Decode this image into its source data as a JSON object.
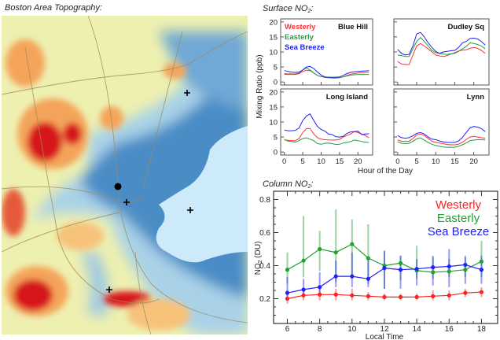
{
  "map": {
    "title": "Boston Area Topography:",
    "colors": {
      "water": "#cdeafa",
      "low": "#3f86c4",
      "mid": "#a9d2e8",
      "plain": "#eef0b0",
      "high": "#f4a45a",
      "peak": "#d7191c",
      "roads": "#a08a5a"
    },
    "markers": [
      {
        "type": "dot",
        "icon": "filled-circle-icon"
      },
      {
        "type": "plus",
        "icon": "plus-marker-icon"
      },
      {
        "type": "plus",
        "icon": "plus-marker-icon"
      },
      {
        "type": "plus",
        "icon": "plus-marker-icon"
      },
      {
        "type": "plus",
        "icon": "plus-marker-icon"
      }
    ]
  },
  "chart_data": [
    {
      "type": "line",
      "title": "Surface NO2:",
      "title_main": "Surface NO",
      "title_sub": "2",
      "title_suffix": ":",
      "xlabel": "Hour of the Day",
      "ylabel": "Mixing Ratio (ppb)",
      "xlim": [
        -1,
        24
      ],
      "ylim": [
        -1,
        21
      ],
      "xticks": [
        0,
        5,
        10,
        15,
        20
      ],
      "yticks": [
        0,
        5,
        10,
        15,
        20
      ],
      "legend": {
        "placement": "top-left of first panel",
        "entries": [
          "Westerly",
          "Easterly",
          "Sea Breeze"
        ]
      },
      "colors": {
        "Westerly": "#ff3030",
        "Easterly": "#22a040",
        "Sea Breeze": "#2020ff"
      },
      "x": [
        0,
        1,
        2,
        3,
        4,
        5,
        6,
        7,
        8,
        9,
        10,
        11,
        12,
        13,
        14,
        15,
        16,
        17,
        18,
        19,
        20,
        21,
        22,
        23
      ],
      "panels": [
        {
          "name": "Blue Hill",
          "series": [
            {
              "name": "Westerly",
              "values": [
                2.6,
                2.5,
                2.5,
                2.5,
                2.8,
                3.5,
                3.9,
                3.8,
                3.0,
                2.2,
                1.8,
                1.5,
                1.4,
                1.3,
                1.3,
                1.4,
                1.7,
                2.2,
                2.6,
                2.8,
                3.0,
                3.1,
                3.2,
                3.2
              ]
            },
            {
              "name": "Easterly",
              "values": [
                2.8,
                2.7,
                2.7,
                2.7,
                3.0,
                4.0,
                4.7,
                4.0,
                3.0,
                2.2,
                1.8,
                1.6,
                1.5,
                1.5,
                1.5,
                1.5,
                1.7,
                2.0,
                2.3,
                2.4,
                2.5,
                2.5,
                2.5,
                2.5
              ]
            },
            {
              "name": "Sea Breeze",
              "values": [
                3.8,
                3.5,
                3.3,
                3.2,
                3.3,
                4.0,
                5.0,
                5.2,
                4.5,
                3.3,
                2.3,
                1.7,
                1.6,
                1.6,
                1.6,
                1.7,
                2.2,
                2.8,
                3.2,
                3.4,
                3.5,
                3.6,
                3.7,
                3.8
              ]
            }
          ]
        },
        {
          "name": "Dudley Sq",
          "series": [
            {
              "name": "Westerly",
              "values": [
                6.8,
                6.0,
                5.8,
                5.8,
                9.0,
                12.0,
                12.8,
                12.0,
                11.0,
                10.0,
                9.0,
                8.7,
                8.5,
                8.8,
                9.3,
                9.8,
                10.3,
                10.6,
                10.7,
                11.2,
                11.5,
                11.2,
                10.5,
                9.5
              ]
            },
            {
              "name": "Easterly",
              "values": [
                9.0,
                8.8,
                8.5,
                8.5,
                11.0,
                13.5,
                14.8,
                13.5,
                12.0,
                10.5,
                9.8,
                9.5,
                9.3,
                9.2,
                9.4,
                9.5,
                10.2,
                11.0,
                11.8,
                13.0,
                12.8,
                12.5,
                12.0,
                11.0
              ]
            },
            {
              "name": "Sea Breeze",
              "values": [
                10.8,
                9.5,
                9.0,
                9.2,
                12.0,
                16.0,
                16.5,
                15.0,
                13.0,
                11.5,
                10.2,
                9.5,
                10.0,
                10.2,
                10.4,
                10.5,
                11.5,
                13.0,
                13.5,
                14.5,
                14.6,
                14.3,
                13.5,
                12.3
              ]
            }
          ]
        },
        {
          "name": "Long Island",
          "series": [
            {
              "name": "Westerly",
              "values": [
                4.0,
                3.9,
                3.8,
                3.8,
                4.5,
                6.5,
                7.8,
                7.8,
                6.0,
                4.8,
                4.3,
                4.1,
                4.0,
                4.0,
                4.0,
                4.2,
                5.0,
                5.5,
                6.0,
                6.8,
                6.5,
                6.0,
                5.5,
                4.8
              ]
            },
            {
              "name": "Easterly",
              "values": [
                4.2,
                3.6,
                3.5,
                3.3,
                3.8,
                4.5,
                4.7,
                4.3,
                3.8,
                2.8,
                2.6,
                2.9,
                3.0,
                2.8,
                2.5,
                2.6,
                3.0,
                3.2,
                3.5,
                4.0,
                3.8,
                3.5,
                3.3,
                3.2
              ]
            },
            {
              "name": "Sea Breeze",
              "values": [
                7.3,
                7.1,
                7.1,
                7.2,
                8.0,
                10.5,
                12.0,
                12.7,
                10.5,
                8.5,
                7.5,
                7.0,
                6.0,
                5.8,
                5.1,
                5.0,
                5.2,
                6.2,
                6.7,
                6.8,
                7.0,
                5.8,
                6.0,
                6.1
              ]
            }
          ]
        },
        {
          "name": "Lynn",
          "series": [
            {
              "name": "Westerly",
              "values": [
                4.0,
                3.6,
                3.5,
                3.6,
                4.5,
                5.7,
                6.0,
                5.5,
                4.5,
                3.6,
                3.2,
                3.0,
                2.8,
                2.5,
                2.4,
                2.4,
                2.6,
                3.2,
                4.2,
                5.0,
                5.2,
                5.0,
                4.8,
                4.5
              ]
            },
            {
              "name": "Easterly",
              "values": [
                3.4,
                2.9,
                2.8,
                2.9,
                3.6,
                4.4,
                4.7,
                4.0,
                3.2,
                2.6,
                2.2,
                1.9,
                1.7,
                1.6,
                1.6,
                1.6,
                1.9,
                2.4,
                3.0,
                3.8,
                4.0,
                4.1,
                4.1,
                4.0
              ]
            },
            {
              "name": "Sea Breeze",
              "values": [
                5.5,
                4.8,
                4.6,
                4.8,
                5.4,
                6.2,
                6.5,
                6.0,
                5.0,
                4.3,
                4.1,
                3.7,
                3.4,
                3.2,
                3.2,
                3.2,
                3.7,
                4.8,
                6.5,
                8.0,
                8.5,
                8.3,
                7.8,
                6.8
              ]
            }
          ]
        }
      ]
    },
    {
      "type": "line",
      "title": "Column NO2:",
      "title_main": "Column NO",
      "title_sub": "2",
      "title_suffix": ":",
      "xlabel": "Local Time",
      "ylabel_main": "NO",
      "ylabel_sub": "2",
      "ylabel_suffix": " (DU)",
      "xlim": [
        5.15,
        19
      ],
      "ylim": [
        0.05,
        0.85
      ],
      "xticks": [
        6,
        8,
        10,
        12,
        14,
        16,
        18
      ],
      "yticks": [
        0.2,
        0.4,
        0.6,
        0.8
      ],
      "ytick_labels": [
        "0.2",
        "0.4",
        "0.6",
        "0.8"
      ],
      "legend": {
        "placement": "top-right"
      },
      "x": [
        6,
        7,
        8,
        9,
        10,
        11,
        12,
        13,
        14,
        15,
        16,
        17,
        18
      ],
      "series": [
        {
          "name": "Westerly",
          "color": "#ff2020",
          "values": [
            0.2,
            0.22,
            0.225,
            0.225,
            0.22,
            0.215,
            0.21,
            0.21,
            0.21,
            0.215,
            0.22,
            0.235,
            0.24
          ],
          "err_low": [
            0.17,
            0.19,
            0.19,
            0.19,
            0.19,
            0.19,
            0.19,
            0.19,
            0.19,
            0.19,
            0.19,
            0.21,
            0.21
          ],
          "err_high": [
            0.25,
            0.26,
            0.26,
            0.26,
            0.26,
            0.24,
            0.23,
            0.23,
            0.23,
            0.25,
            0.25,
            0.26,
            0.27
          ]
        },
        {
          "name": "Easterly",
          "color": "#22a030",
          "values": [
            0.375,
            0.43,
            0.5,
            0.48,
            0.53,
            0.445,
            0.4,
            0.415,
            0.37,
            0.36,
            0.365,
            0.375,
            0.425
          ],
          "err_low": [
            0.29,
            0.33,
            0.37,
            0.3,
            0.33,
            0.29,
            0.26,
            0.31,
            0.32,
            0.32,
            0.33,
            0.33,
            0.33
          ],
          "err_high": [
            0.48,
            0.7,
            0.61,
            0.74,
            0.68,
            0.65,
            0.49,
            0.46,
            0.52,
            0.45,
            0.44,
            0.45,
            0.55
          ]
        },
        {
          "name": "Sea Breeze",
          "color": "#2020ff",
          "values": [
            0.235,
            0.255,
            0.27,
            0.335,
            0.335,
            0.32,
            0.385,
            0.375,
            0.38,
            0.39,
            0.395,
            0.405,
            0.375
          ],
          "err_low": [
            0.19,
            0.21,
            0.22,
            0.27,
            0.27,
            0.27,
            0.26,
            0.26,
            0.28,
            0.28,
            0.27,
            0.29,
            0.29
          ],
          "err_high": [
            0.33,
            0.32,
            0.36,
            0.43,
            0.48,
            0.44,
            0.49,
            0.46,
            0.44,
            0.46,
            0.5,
            0.46,
            0.46
          ]
        }
      ]
    }
  ]
}
